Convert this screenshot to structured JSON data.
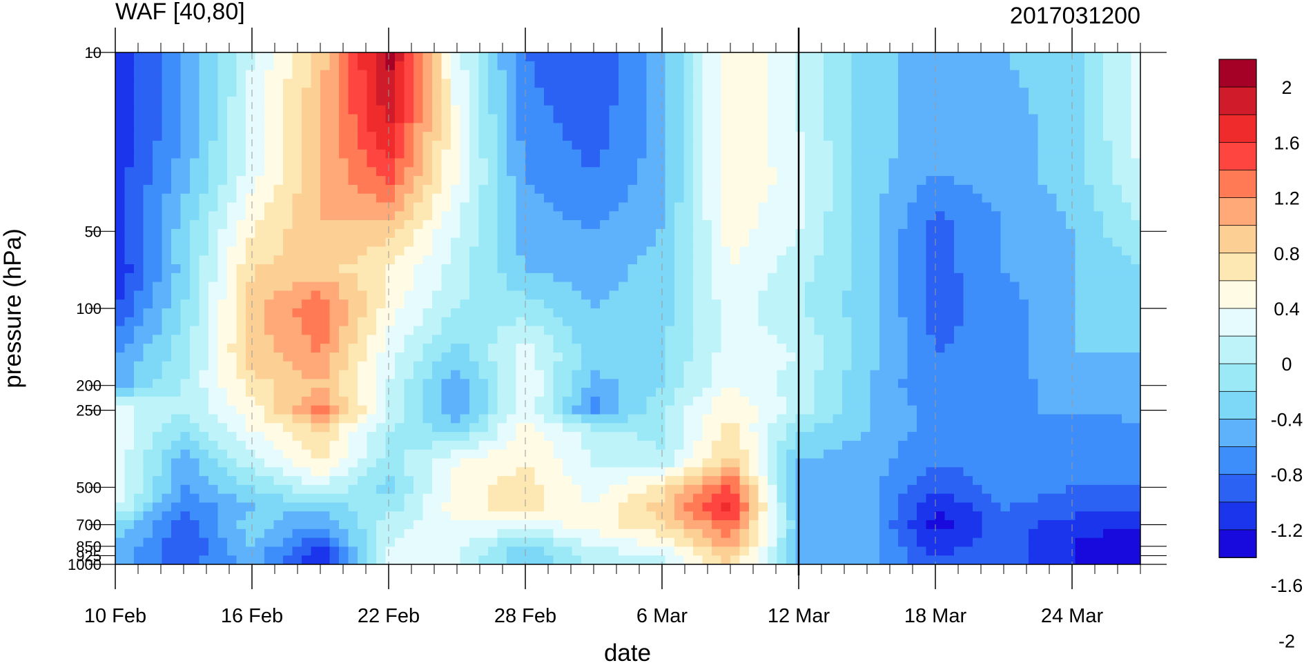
{
  "chart_data": {
    "type": "heatmap",
    "subtype": "filled-contour time-pressure section",
    "title": "WAF [40,80]",
    "title_right": "2017031200",
    "xlabel": "date",
    "ylabel": "pressure (hPa)",
    "x_ticks": [
      "10 Feb",
      "16 Feb",
      "22 Feb",
      "28 Feb",
      "6 Mar",
      "12 Mar",
      "18 Mar",
      "24 Mar"
    ],
    "x_tick_days": [
      0,
      6,
      12,
      18,
      24,
      30,
      36,
      42
    ],
    "x_range_days": [
      0,
      45
    ],
    "y_ticks": [
      10,
      50,
      100,
      200,
      250,
      500,
      700,
      850,
      925,
      1000
    ],
    "y_tick_labels": [
      "10",
      "50",
      "100",
      "200",
      "250",
      "500",
      "700",
      "850",
      "925",
      "1000"
    ],
    "y_scale": "log",
    "y_range": [
      1000,
      10
    ],
    "y_inverted": true,
    "grid": "dashed vertical lines at date ticks",
    "reference_line": {
      "date": "12 Mar",
      "style": "solid black vertical"
    },
    "colorbar": {
      "labels": [
        "2",
        "1.6",
        "1.2",
        "0.8",
        "0.4",
        "0",
        "-0.4",
        "-0.8",
        "-1.2",
        "-1.6",
        "-2"
      ],
      "colors": [
        "#a50026",
        "#d01c2a",
        "#ef2b2b",
        "#ff4540",
        "#ff7a55",
        "#ffa878",
        "#fccf95",
        "#fde7b2",
        "#fffbe4",
        "#e6fbfd",
        "#bdf3f9",
        "#9be9f6",
        "#7dd7f7",
        "#5eb2fb",
        "#3d8efb",
        "#2b62f4",
        "#1a35ec",
        "#1809dd"
      ],
      "placement": "right"
    },
    "pressure_levels": [
      10,
      20,
      30,
      50,
      70,
      100,
      150,
      200,
      250,
      300,
      400,
      500,
      600,
      700,
      850,
      925,
      1000
    ],
    "days": [
      0,
      3,
      6,
      9,
      12,
      15,
      18,
      21,
      24,
      27,
      30,
      33,
      36,
      39,
      42,
      45
    ],
    "values": [
      [
        -1.2,
        -0.6,
        0.2,
        0.9,
        2.1,
        0.3,
        -0.8,
        -1.0,
        -0.5,
        0.6,
        0.2,
        -0.3,
        -0.5,
        -0.4,
        -0.3,
        0.3
      ],
      [
        -1.2,
        -0.6,
        0.3,
        1.0,
        1.8,
        0.4,
        -0.7,
        -0.9,
        -0.5,
        0.6,
        0.2,
        -0.3,
        -0.5,
        -0.5,
        -0.3,
        0.3
      ],
      [
        -1.1,
        -0.5,
        0.3,
        1.0,
        1.5,
        0.4,
        -0.6,
        -0.8,
        -0.5,
        0.6,
        0.3,
        -0.3,
        -0.6,
        -0.5,
        -0.3,
        0.2
      ],
      [
        -1.1,
        -0.3,
        0.6,
        1.0,
        0.9,
        0.2,
        -0.5,
        -0.6,
        -0.4,
        0.5,
        0.2,
        -0.3,
        -0.9,
        -0.6,
        -0.4,
        0.0
      ],
      [
        -1.2,
        -0.3,
        0.8,
        0.9,
        0.6,
        0.1,
        -0.4,
        -0.5,
        -0.3,
        0.4,
        0.1,
        -0.3,
        -0.9,
        -0.6,
        -0.4,
        -0.2
      ],
      [
        -1.0,
        -0.2,
        0.9,
        1.4,
        0.5,
        0.0,
        -0.1,
        -0.4,
        -0.3,
        0.3,
        0.0,
        -0.3,
        -0.9,
        -0.7,
        -0.4,
        -0.3
      ],
      [
        -0.6,
        -0.1,
        0.9,
        1.2,
        0.3,
        -0.3,
        0.3,
        -0.3,
        -0.2,
        0.3,
        0.2,
        -0.3,
        -0.8,
        -0.7,
        -0.4,
        -0.4
      ],
      [
        -0.5,
        0.0,
        0.7,
        1.0,
        0.2,
        -0.6,
        0.4,
        -0.5,
        -0.2,
        0.4,
        0.1,
        -0.4,
        -0.8,
        -0.7,
        -0.5,
        -0.4
      ],
      [
        0.3,
        0.0,
        0.5,
        1.3,
        0.2,
        -0.6,
        0.4,
        -0.7,
        0.0,
        0.6,
        0.1,
        -0.4,
        -0.7,
        -0.6,
        -0.6,
        -0.5
      ],
      [
        0.4,
        -0.2,
        0.4,
        0.8,
        0.0,
        -0.3,
        0.5,
        0.1,
        -0.1,
        0.7,
        -0.2,
        -0.4,
        -0.7,
        -0.6,
        -0.7,
        -0.7
      ],
      [
        0.3,
        -0.5,
        0.1,
        0.6,
        -0.1,
        0.4,
        0.6,
        0.2,
        0.1,
        0.9,
        -0.4,
        -0.5,
        -0.8,
        -0.7,
        -0.7,
        -0.7
      ],
      [
        0.4,
        -0.6,
        -0.2,
        0.2,
        -0.3,
        0.5,
        0.7,
        0.3,
        0.7,
        1.5,
        -0.6,
        -0.5,
        -1.0,
        -0.7,
        -0.8,
        -0.8
      ],
      [
        0.2,
        -0.8,
        -0.4,
        -0.3,
        -0.1,
        0.5,
        0.7,
        0.4,
        0.9,
        1.7,
        -0.5,
        -0.5,
        -1.2,
        -0.8,
        -0.9,
        -1.0
      ],
      [
        -0.2,
        -0.9,
        -0.3,
        -0.6,
        0.1,
        0.4,
        0.3,
        0.5,
        0.8,
        1.4,
        -0.4,
        -0.5,
        -1.3,
        -0.9,
        -1.1,
        -1.2
      ],
      [
        -0.4,
        -1.0,
        -0.4,
        -1.0,
        0.2,
        0.3,
        -0.3,
        0.2,
        0.4,
        1.1,
        -0.4,
        -0.5,
        -1.1,
        -0.9,
        -1.2,
        -1.4
      ],
      [
        -0.5,
        -0.9,
        -0.5,
        -1.2,
        0.3,
        0.2,
        -0.4,
        0.1,
        0.2,
        0.9,
        -0.4,
        -0.5,
        -1.0,
        -0.9,
        -1.2,
        -1.3
      ],
      [
        -0.5,
        -0.9,
        -0.5,
        -1.1,
        0.3,
        0.2,
        -0.4,
        0.1,
        0.2,
        0.8,
        -0.4,
        -0.5,
        -1.0,
        -0.9,
        -1.2,
        -1.3
      ]
    ]
  }
}
